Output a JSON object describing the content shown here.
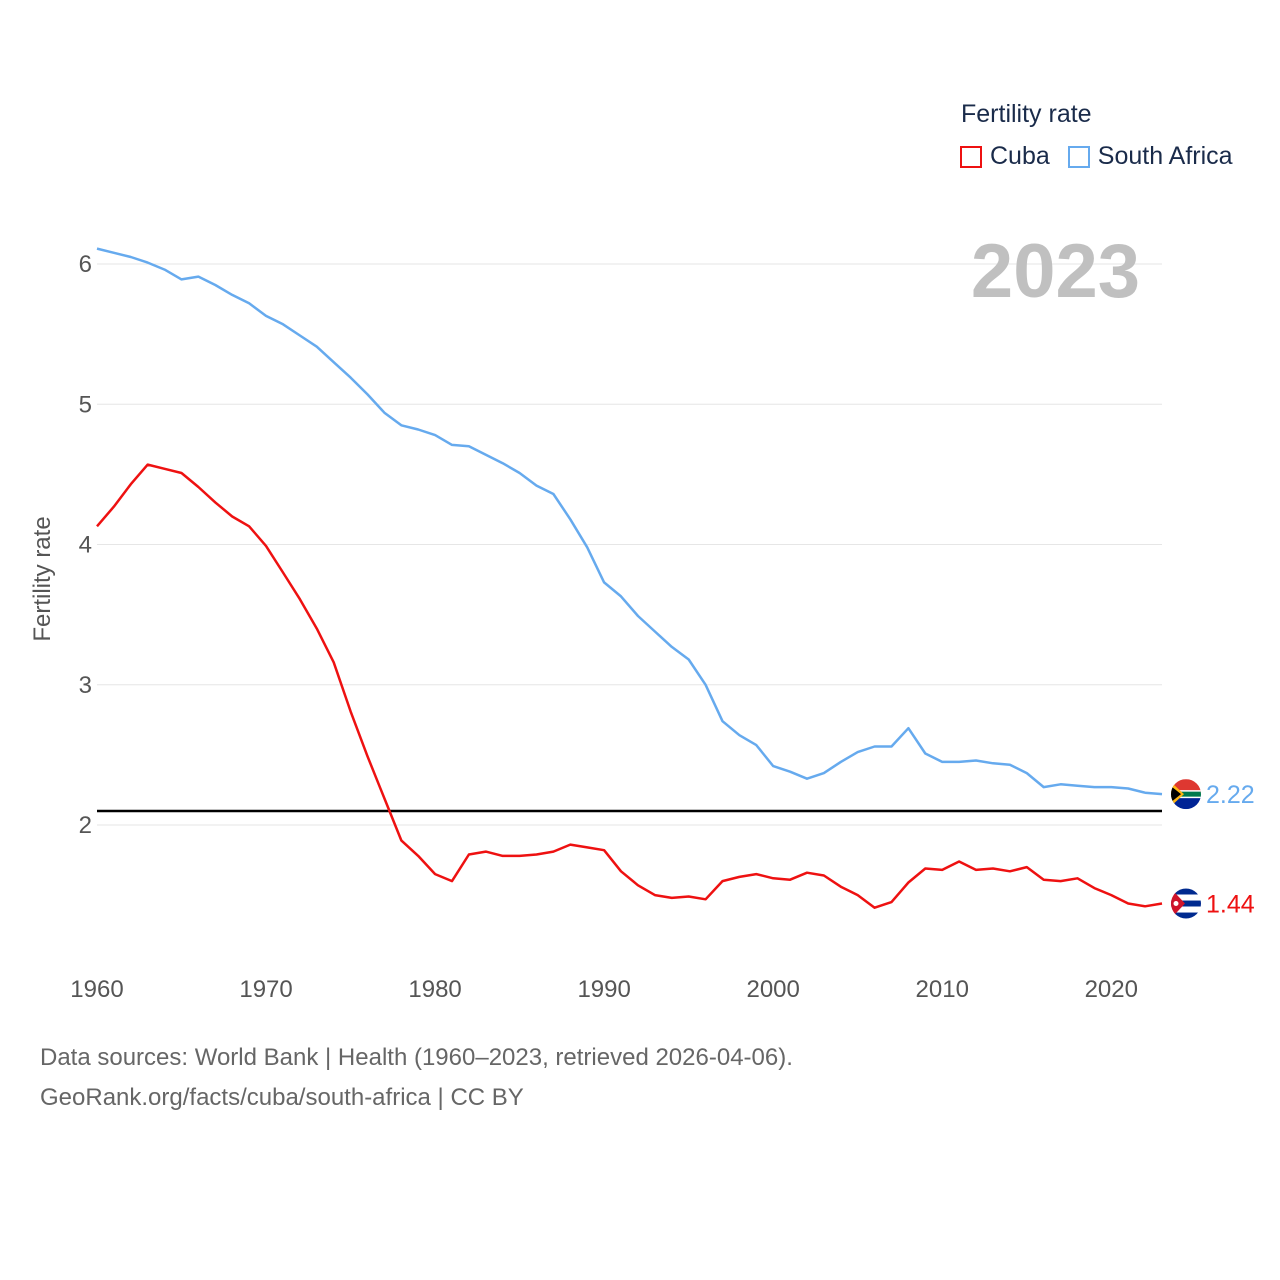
{
  "legend": {
    "title": "Fertility rate",
    "items": [
      {
        "label": "Cuba",
        "color": "#ee1111"
      },
      {
        "label": "South Africa",
        "color": "#66aaee"
      }
    ]
  },
  "year_display": "2023",
  "source": {
    "line1": "Data sources: World Bank | Health (1960–2023, retrieved 2026-04-06).",
    "line2": "GeoRank.org/facts/cuba/south-africa | CC BY"
  },
  "chart_data": {
    "type": "line",
    "title": "Fertility rate",
    "xlabel": "",
    "ylabel": "Fertility rate",
    "xlim": [
      1960,
      2023
    ],
    "ylim": [
      1.0,
      6.2
    ],
    "xticks": [
      1960,
      1970,
      1980,
      1990,
      2000,
      2010,
      2020
    ],
    "yticks": [
      2,
      3,
      4,
      5,
      6
    ],
    "reference_line": {
      "y": 2.1,
      "color": "#000000"
    },
    "x": [
      1960,
      1961,
      1962,
      1963,
      1964,
      1965,
      1966,
      1967,
      1968,
      1969,
      1970,
      1971,
      1972,
      1973,
      1974,
      1975,
      1976,
      1977,
      1978,
      1979,
      1980,
      1981,
      1982,
      1983,
      1984,
      1985,
      1986,
      1987,
      1988,
      1989,
      1990,
      1991,
      1992,
      1993,
      1994,
      1995,
      1996,
      1997,
      1998,
      1999,
      2000,
      2001,
      2002,
      2003,
      2004,
      2005,
      2006,
      2007,
      2008,
      2009,
      2010,
      2011,
      2012,
      2013,
      2014,
      2015,
      2016,
      2017,
      2018,
      2019,
      2020,
      2021,
      2022,
      2023
    ],
    "series": [
      {
        "name": "Cuba",
        "color": "#ee1111",
        "end_label": "1.44",
        "values": [
          4.13,
          4.27,
          4.43,
          4.57,
          4.54,
          4.51,
          4.41,
          4.3,
          4.2,
          4.13,
          3.99,
          3.8,
          3.61,
          3.4,
          3.16,
          2.81,
          2.49,
          2.19,
          1.89,
          1.78,
          1.65,
          1.6,
          1.79,
          1.81,
          1.78,
          1.78,
          1.79,
          1.81,
          1.86,
          1.84,
          1.82,
          1.67,
          1.57,
          1.5,
          1.48,
          1.49,
          1.47,
          1.6,
          1.63,
          1.65,
          1.62,
          1.61,
          1.66,
          1.64,
          1.56,
          1.5,
          1.41,
          1.45,
          1.59,
          1.69,
          1.68,
          1.74,
          1.68,
          1.69,
          1.67,
          1.7,
          1.61,
          1.6,
          1.62,
          1.55,
          1.5,
          1.44,
          1.42,
          1.44
        ]
      },
      {
        "name": "South Africa",
        "color": "#66aaee",
        "end_label": "2.22",
        "values": [
          6.11,
          6.08,
          6.05,
          6.01,
          5.96,
          5.89,
          5.91,
          5.85,
          5.78,
          5.72,
          5.63,
          5.57,
          5.49,
          5.41,
          5.3,
          5.19,
          5.07,
          4.94,
          4.85,
          4.82,
          4.78,
          4.71,
          4.7,
          4.64,
          4.58,
          4.51,
          4.42,
          4.36,
          4.18,
          3.98,
          3.73,
          3.63,
          3.49,
          3.38,
          3.27,
          3.18,
          3.0,
          2.74,
          2.64,
          2.57,
          2.42,
          2.38,
          2.33,
          2.37,
          2.45,
          2.52,
          2.56,
          2.56,
          2.69,
          2.51,
          2.45,
          2.45,
          2.46,
          2.44,
          2.43,
          2.37,
          2.27,
          2.29,
          2.28,
          2.27,
          2.27,
          2.26,
          2.23,
          2.22
        ]
      }
    ]
  }
}
